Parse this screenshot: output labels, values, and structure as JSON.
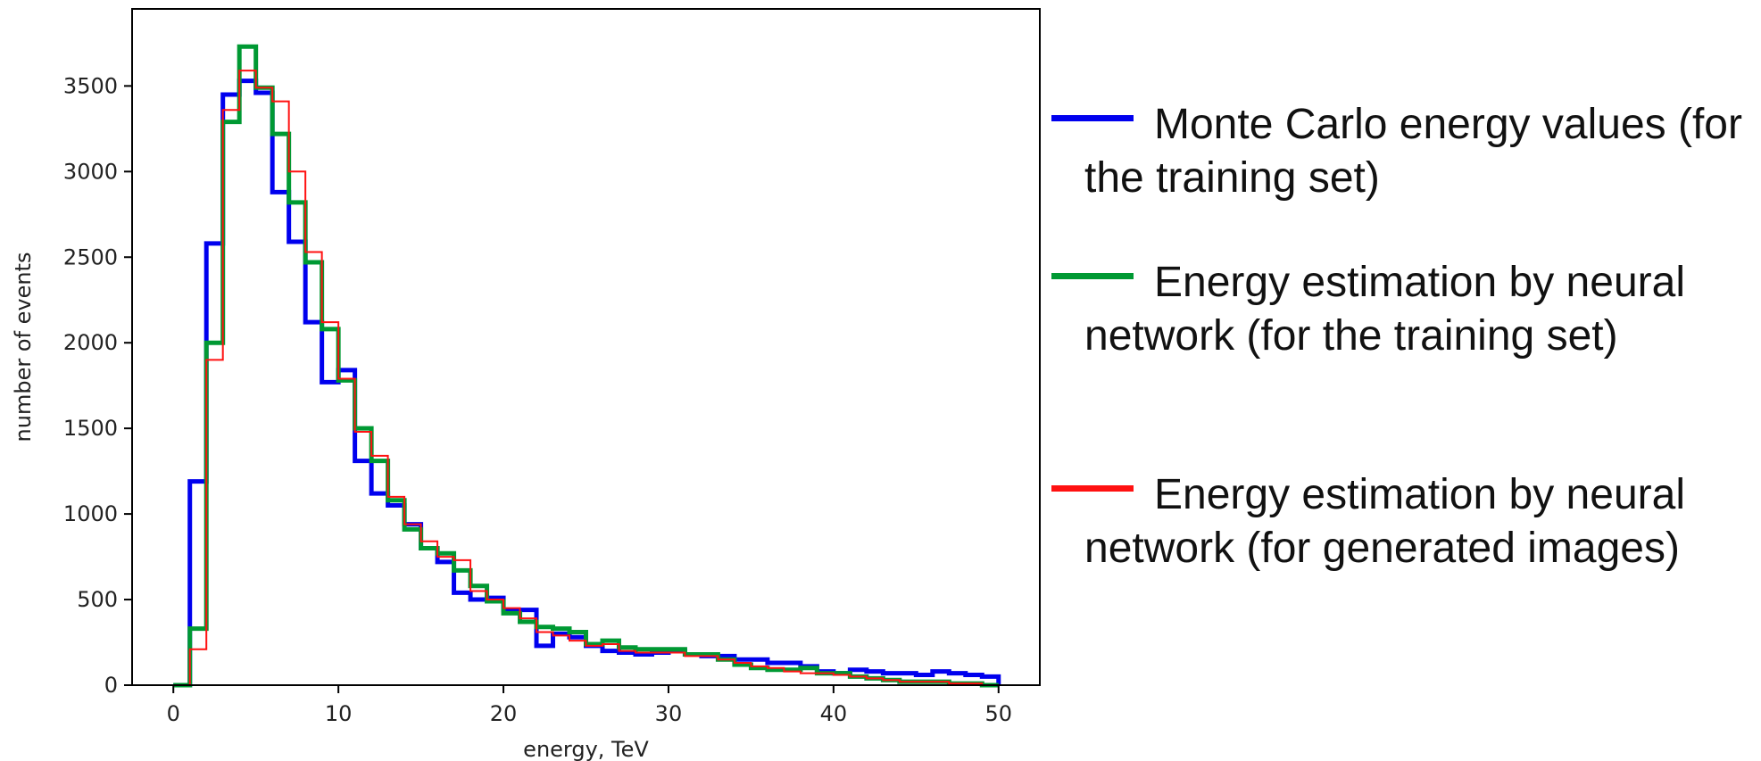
{
  "chart_data": {
    "type": "line",
    "xlabel": "energy, TeV",
    "ylabel": "number of events",
    "xlim": [
      -2.5,
      52.5
    ],
    "ylim": [
      0,
      3950
    ],
    "xticks": [
      "0",
      "10",
      "20",
      "30",
      "40",
      "50"
    ],
    "yticks": [
      "0",
      "500",
      "1000",
      "1500",
      "2000",
      "2500",
      "3000",
      "3500"
    ],
    "bin_edges": [
      0,
      1,
      2,
      3,
      4,
      5,
      6,
      7,
      8,
      9,
      10,
      11,
      12,
      13,
      14,
      15,
      16,
      17,
      18,
      19,
      20,
      21,
      22,
      23,
      24,
      25,
      26,
      27,
      28,
      29,
      30,
      31,
      32,
      33,
      34,
      35,
      36,
      37,
      38,
      39,
      40,
      41,
      42,
      43,
      44,
      45,
      46,
      47,
      48,
      49,
      50
    ],
    "grid": false,
    "legend_position": "right, outside plot",
    "series": [
      {
        "name": "Monte Carlo energy values (for the training set)",
        "color": "#0000ee",
        "stroke": "thick",
        "values": [
          0,
          1190,
          2580,
          3450,
          3530,
          3460,
          2880,
          2590,
          2120,
          1770,
          1840,
          1310,
          1120,
          1050,
          940,
          800,
          720,
          540,
          500,
          510,
          440,
          440,
          230,
          300,
          280,
          230,
          200,
          190,
          180,
          190,
          200,
          180,
          170,
          170,
          150,
          150,
          130,
          130,
          110,
          80,
          70,
          90,
          80,
          70,
          70,
          60,
          80,
          70,
          60,
          50
        ]
      },
      {
        "name": "Energy estimation by neural network (for the training set)",
        "color": "#009933",
        "stroke": "thick",
        "values": [
          0,
          330,
          2000,
          3290,
          3730,
          3490,
          3220,
          2820,
          2470,
          2080,
          1780,
          1500,
          1310,
          1080,
          910,
          800,
          770,
          670,
          580,
          490,
          420,
          370,
          340,
          330,
          310,
          240,
          260,
          220,
          210,
          210,
          210,
          180,
          180,
          150,
          120,
          100,
          90,
          90,
          100,
          70,
          70,
          50,
          40,
          30,
          20,
          20,
          20,
          10,
          10,
          0
        ]
      },
      {
        "name": "Energy estimation by neural network (for generated images)",
        "color": "#ff1111",
        "stroke": "thin",
        "values": [
          0,
          210,
          1900,
          3360,
          3590,
          3490,
          3410,
          3000,
          2530,
          2120,
          1790,
          1480,
          1340,
          1100,
          940,
          840,
          750,
          730,
          550,
          500,
          450,
          390,
          310,
          290,
          260,
          230,
          240,
          200,
          190,
          190,
          190,
          170,
          170,
          150,
          130,
          110,
          100,
          80,
          70,
          70,
          60,
          50,
          40,
          30,
          20,
          20,
          20,
          10,
          10,
          0
        ]
      }
    ]
  }
}
